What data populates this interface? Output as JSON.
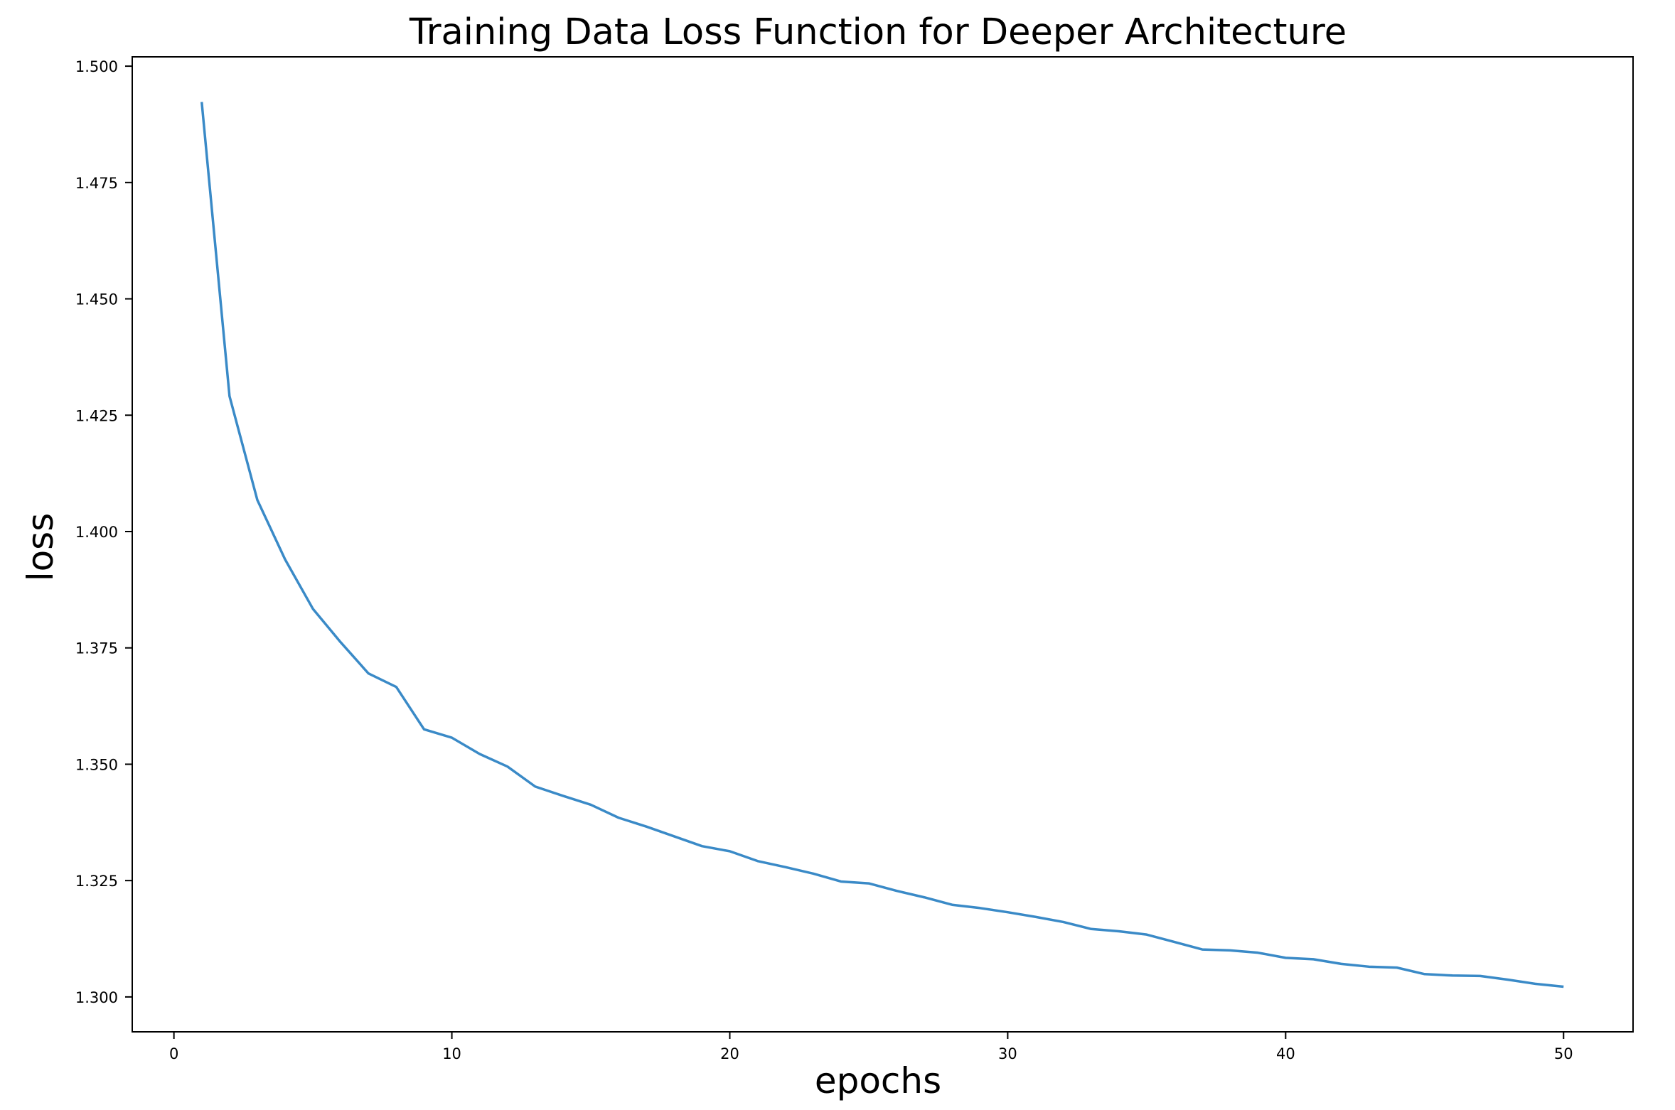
{
  "chart_data": {
    "type": "line",
    "title": "Training Data Loss Function for Deeper Architecture",
    "xlabel": "epochs",
    "ylabel": "loss",
    "xlim": [
      -1.5,
      52.5
    ],
    "ylim": [
      1.2925,
      1.502
    ],
    "xticks": [
      0,
      10,
      20,
      30,
      40,
      50
    ],
    "yticks": [
      1.3,
      1.325,
      1.35,
      1.375,
      1.4,
      1.425,
      1.45,
      1.475,
      1.5
    ],
    "xtick_labels": [
      "0",
      "10",
      "20",
      "30",
      "40",
      "50"
    ],
    "ytick_labels": [
      "1.300",
      "1.325",
      "1.350",
      "1.375",
      "1.400",
      "1.425",
      "1.450",
      "1.475",
      "1.500"
    ],
    "grid": false,
    "series": [
      {
        "color": "#3a8ac7",
        "x": [
          1,
          2,
          3,
          4,
          5,
          6,
          7,
          8,
          9,
          10,
          11,
          12,
          13,
          14,
          15,
          16,
          17,
          18,
          19,
          20,
          21,
          22,
          23,
          24,
          25,
          26,
          27,
          28,
          29,
          30,
          31,
          32,
          33,
          34,
          35,
          36,
          37,
          38,
          39,
          40,
          41,
          42,
          43,
          44,
          45,
          46,
          47,
          48,
          49,
          50
        ],
        "values": [
          1.4923,
          1.4291,
          1.4068,
          1.394,
          1.3834,
          1.3762,
          1.3695,
          1.3666,
          1.3575,
          1.3557,
          1.3522,
          1.3495,
          1.3452,
          1.3432,
          1.3413,
          1.3385,
          1.3366,
          1.3345,
          1.3324,
          1.3313,
          1.3292,
          1.3279,
          1.3265,
          1.3248,
          1.3244,
          1.3228,
          1.3214,
          1.3198,
          1.3191,
          1.3182,
          1.3172,
          1.3161,
          1.3146,
          1.3141,
          1.3134,
          1.3118,
          1.3102,
          1.31,
          1.3095,
          1.3084,
          1.3081,
          1.3071,
          1.3065,
          1.3063,
          1.3049,
          1.3046,
          1.3045,
          1.3037,
          1.3028,
          1.3022
        ]
      }
    ]
  }
}
